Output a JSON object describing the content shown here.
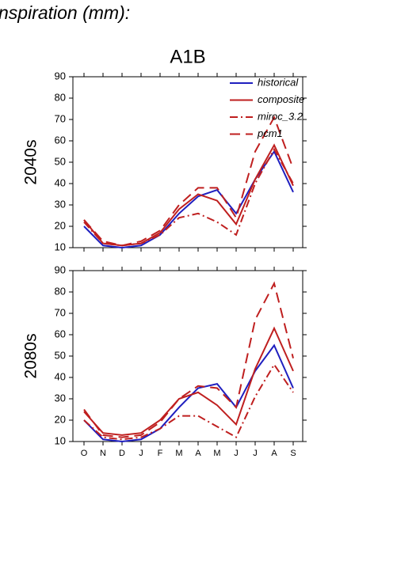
{
  "header": "nspiration (mm):",
  "chart_data": [
    {
      "type": "line",
      "title": "A1B",
      "ylabel": "2040s",
      "ylim": [
        10,
        90
      ],
      "yticks": [
        10,
        20,
        30,
        40,
        50,
        60,
        70,
        80,
        90
      ],
      "legend": "upper right",
      "series": [
        {
          "name": "historical",
          "color": "#1f1fbf",
          "dash": "solid",
          "values": [
            20,
            11,
            10,
            11,
            16,
            26,
            34,
            37,
            26,
            42,
            55,
            36
          ]
        },
        {
          "name": "composite",
          "color": "#bf1f1f",
          "dash": "solid",
          "values": [
            23,
            12,
            11,
            12,
            17,
            28,
            35,
            32,
            21,
            42,
            58,
            39
          ]
        },
        {
          "name": "miroc_3.2",
          "color": "#bf1f1f",
          "dash": "dashdot",
          "values": [
            22,
            12,
            11,
            12,
            16,
            24,
            26,
            22,
            16,
            40,
            56,
            40
          ]
        },
        {
          "name": "pcm1",
          "color": "#bf1f1f",
          "dash": "dashed",
          "values": [
            23,
            13,
            11,
            13,
            18,
            30,
            38,
            38,
            24,
            55,
            71,
            47
          ]
        }
      ]
    },
    {
      "type": "line",
      "ylabel": "2080s",
      "ylim": [
        10,
        90
      ],
      "yticks": [
        10,
        20,
        30,
        40,
        50,
        60,
        70,
        80,
        90
      ],
      "categories": [
        "O",
        "N",
        "D",
        "J",
        "F",
        "M",
        "A",
        "M",
        "J",
        "J",
        "A",
        "S"
      ],
      "series": [
        {
          "color": "#1f1fbf",
          "dash": "solid",
          "values": [
            20,
            11,
            10,
            11,
            16,
            26,
            35,
            37,
            26,
            43,
            55,
            35
          ]
        },
        {
          "color": "#bf1f1f",
          "dash": "solid",
          "values": [
            24,
            14,
            13,
            14,
            20,
            30,
            33,
            27,
            18,
            44,
            63,
            43
          ]
        },
        {
          "color": "#bf1f1f",
          "dash": "dashdot",
          "values": [
            20,
            12,
            11,
            12,
            16,
            22,
            22,
            17,
            12,
            31,
            46,
            33
          ]
        },
        {
          "color": "#bf1f1f",
          "dash": "dashed",
          "values": [
            25,
            13,
            12,
            13,
            19,
            30,
            36,
            35,
            26,
            67,
            84,
            49
          ]
        }
      ]
    }
  ]
}
